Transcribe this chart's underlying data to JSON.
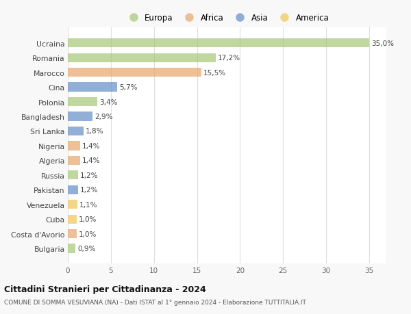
{
  "countries": [
    "Ucraina",
    "Romania",
    "Marocco",
    "Cina",
    "Polonia",
    "Bangladesh",
    "Sri Lanka",
    "Nigeria",
    "Algeria",
    "Russia",
    "Pakistan",
    "Venezuela",
    "Cuba",
    "Costa d'Avorio",
    "Bulgaria"
  ],
  "values": [
    35.0,
    17.2,
    15.5,
    5.7,
    3.4,
    2.9,
    1.8,
    1.4,
    1.4,
    1.2,
    1.2,
    1.1,
    1.0,
    1.0,
    0.9
  ],
  "labels": [
    "35,0%",
    "17,2%",
    "15,5%",
    "5,7%",
    "3,4%",
    "2,9%",
    "1,8%",
    "1,4%",
    "1,4%",
    "1,2%",
    "1,2%",
    "1,1%",
    "1,0%",
    "1,0%",
    "0,9%"
  ],
  "continents": [
    "Europa",
    "Europa",
    "Africa",
    "Asia",
    "Europa",
    "Asia",
    "Asia",
    "Africa",
    "Africa",
    "Europa",
    "Asia",
    "America",
    "America",
    "Africa",
    "Europa"
  ],
  "continent_colors": {
    "Europa": "#a8c87a",
    "Africa": "#e8a870",
    "Asia": "#6890c8",
    "America": "#f0c858"
  },
  "legend_labels": [
    "Europa",
    "Africa",
    "Asia",
    "America"
  ],
  "legend_colors": [
    "#a8c87a",
    "#e8a870",
    "#6890c8",
    "#f0c858"
  ],
  "title": "Cittadini Stranieri per Cittadinanza - 2024",
  "subtitle": "COMUNE DI SOMMA VESUVIANA (NA) - Dati ISTAT al 1° gennaio 2024 - Elaborazione TUTTITALIA.IT",
  "xlim": [
    0,
    37
  ],
  "xticks": [
    0,
    5,
    10,
    15,
    20,
    25,
    30,
    35
  ],
  "background_color": "#f8f8f8",
  "plot_background": "#ffffff",
  "grid_color": "#dddddd",
  "bar_alpha": 0.72
}
